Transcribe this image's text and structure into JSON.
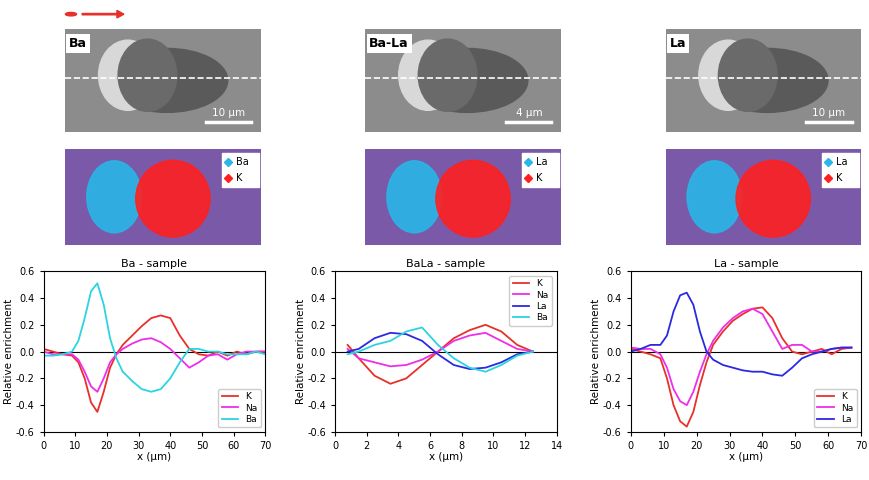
{
  "panels": [
    {
      "label": "Ba",
      "scale_bar": "10 µm",
      "map_legend": [
        {
          "name": "Ba",
          "color": "#29b6e8"
        },
        {
          "name": "K",
          "color": "#ff2020"
        }
      ]
    },
    {
      "label": "Ba-La",
      "scale_bar": "4 µm",
      "map_legend": [
        {
          "name": "La",
          "color": "#29b6e8"
        },
        {
          "name": "K",
          "color": "#ff2020"
        }
      ]
    },
    {
      "label": "La",
      "scale_bar": "10 µm",
      "map_legend": [
        {
          "name": "La",
          "color": "#29b6e8"
        },
        {
          "name": "K",
          "color": "#ff2020"
        }
      ]
    }
  ],
  "chart_data": [
    {
      "type": "line",
      "title": "Ba - sample",
      "x_label": "x (µm)",
      "y_label": "Relative enrichment",
      "xlim": [
        0,
        70
      ],
      "xticks": [
        0,
        10,
        20,
        30,
        40,
        50,
        60,
        70
      ],
      "ylim": [
        -0.6,
        0.6
      ],
      "yticks": [
        -0.6,
        -0.4,
        -0.2,
        {
          "value": 0,
          "label": "0.0"
        },
        0.2,
        0.4,
        0.6
      ],
      "legend": "lower right",
      "x": [
        0,
        3,
        6,
        9,
        11,
        13,
        15,
        17,
        19,
        21,
        23,
        25,
        28,
        31,
        34,
        37,
        40,
        43,
        46,
        49,
        52,
        55,
        58,
        61,
        64,
        67,
        70
      ],
      "series": [
        {
          "name": "K",
          "color": "#e8302a",
          "values": [
            0.02,
            0.0,
            -0.02,
            -0.03,
            -0.08,
            -0.2,
            -0.38,
            -0.45,
            -0.3,
            -0.12,
            -0.02,
            0.05,
            0.12,
            0.19,
            0.25,
            0.27,
            0.25,
            0.12,
            0.02,
            -0.02,
            -0.03,
            0.0,
            -0.03,
            0.0,
            -0.02,
            0.0,
            0.0
          ]
        },
        {
          "name": "Na",
          "color": "#ee2ee8",
          "values": [
            0.0,
            -0.02,
            -0.02,
            -0.02,
            -0.06,
            -0.15,
            -0.26,
            -0.3,
            -0.2,
            -0.08,
            -0.02,
            0.02,
            0.06,
            0.09,
            0.1,
            0.07,
            0.02,
            -0.05,
            -0.12,
            -0.08,
            -0.03,
            -0.02,
            -0.06,
            -0.02,
            0.0,
            0.0,
            0.0
          ]
        },
        {
          "name": "Ba",
          "color": "#2ad4e0",
          "values": [
            -0.03,
            -0.03,
            -0.02,
            0.0,
            0.08,
            0.25,
            0.45,
            0.51,
            0.35,
            0.1,
            -0.05,
            -0.15,
            -0.22,
            -0.28,
            -0.3,
            -0.28,
            -0.2,
            -0.08,
            0.02,
            0.02,
            0.0,
            0.0,
            -0.02,
            -0.02,
            -0.02,
            0.0,
            -0.02
          ]
        }
      ]
    },
    {
      "type": "line",
      "title": "BaLa - sample",
      "x_label": "x (µm)",
      "y_label": "Relative enrichment",
      "xlim": [
        0,
        14
      ],
      "xticks": [
        0,
        2,
        4,
        6,
        8,
        10,
        12,
        14
      ],
      "ylim": [
        -0.6,
        0.6
      ],
      "yticks": [
        -0.6,
        -0.4,
        -0.2,
        {
          "value": 0,
          "label": "0.0"
        },
        0.2,
        0.4,
        0.6
      ],
      "legend": "upper right",
      "x": [
        0.8,
        1.5,
        2.5,
        3.5,
        4.5,
        5.5,
        6.5,
        7.5,
        8.5,
        9.5,
        10.5,
        11.5,
        12.5
      ],
      "series": [
        {
          "name": "K",
          "color": "#e8302a",
          "values": [
            0.05,
            -0.05,
            -0.18,
            -0.24,
            -0.2,
            -0.1,
            0.0,
            0.1,
            0.16,
            0.2,
            0.15,
            0.05,
            0.0
          ]
        },
        {
          "name": "Na",
          "color": "#ee2ee8",
          "values": [
            0.02,
            -0.05,
            -0.08,
            -0.11,
            -0.1,
            -0.06,
            0.0,
            0.08,
            0.12,
            0.14,
            0.08,
            0.02,
            0.0
          ]
        },
        {
          "name": "La",
          "color": "#2a2ae0",
          "values": [
            0.0,
            0.02,
            0.1,
            0.14,
            0.13,
            0.08,
            -0.02,
            -0.1,
            -0.13,
            -0.12,
            -0.08,
            -0.02,
            0.0
          ]
        },
        {
          "name": "Ba",
          "color": "#2ad4e0",
          "values": [
            -0.02,
            0.0,
            0.05,
            0.08,
            0.15,
            0.18,
            0.05,
            -0.05,
            -0.12,
            -0.15,
            -0.1,
            -0.03,
            0.0
          ]
        }
      ]
    },
    {
      "type": "line",
      "title": "La - sample",
      "x_label": "x (µm)",
      "y_label": "Relative enrichment",
      "xlim": [
        0,
        70
      ],
      "xticks": [
        0,
        10,
        20,
        30,
        40,
        50,
        60,
        70
      ],
      "ylim": [
        -0.6,
        0.6
      ],
      "yticks": [
        -0.6,
        -0.4,
        -0.2,
        {
          "value": 0,
          "label": "0.0"
        },
        0.2,
        0.4,
        0.6
      ],
      "legend": "lower right",
      "x": [
        0,
        3,
        6,
        9,
        11,
        13,
        15,
        17,
        19,
        21,
        23,
        25,
        28,
        31,
        34,
        37,
        40,
        43,
        46,
        49,
        52,
        55,
        58,
        61,
        64,
        67
      ],
      "series": [
        {
          "name": "K",
          "color": "#e8302a",
          "values": [
            0.02,
            0.0,
            -0.02,
            -0.05,
            -0.2,
            -0.4,
            -0.52,
            -0.56,
            -0.45,
            -0.25,
            -0.08,
            0.05,
            0.15,
            0.23,
            0.28,
            0.32,
            0.33,
            0.25,
            0.1,
            0.0,
            -0.02,
            0.0,
            0.02,
            -0.02,
            0.02,
            0.03
          ]
        },
        {
          "name": "Na",
          "color": "#ee2ee8",
          "values": [
            0.03,
            0.02,
            0.02,
            -0.02,
            -0.12,
            -0.28,
            -0.37,
            -0.4,
            -0.3,
            -0.15,
            -0.02,
            0.08,
            0.18,
            0.25,
            0.3,
            0.32,
            0.28,
            0.15,
            0.02,
            0.05,
            0.05,
            0.0,
            0.0,
            0.02,
            0.03,
            0.03
          ]
        },
        {
          "name": "La",
          "color": "#2a2ae0",
          "values": [
            0.0,
            0.02,
            0.05,
            0.05,
            0.12,
            0.3,
            0.42,
            0.44,
            0.35,
            0.15,
            0.0,
            -0.06,
            -0.1,
            -0.12,
            -0.14,
            -0.15,
            -0.15,
            -0.17,
            -0.18,
            -0.12,
            -0.05,
            -0.02,
            0.0,
            0.02,
            0.03,
            0.03
          ]
        }
      ]
    }
  ]
}
